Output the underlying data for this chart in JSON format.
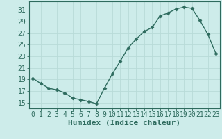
{
  "x": [
    0,
    1,
    2,
    3,
    4,
    5,
    6,
    7,
    8,
    9,
    10,
    11,
    12,
    13,
    14,
    15,
    16,
    17,
    18,
    19,
    20,
    21,
    22,
    23
  ],
  "y": [
    19.2,
    18.3,
    17.5,
    17.2,
    16.7,
    15.8,
    15.5,
    15.2,
    14.8,
    17.5,
    20.0,
    22.2,
    24.5,
    26.0,
    27.3,
    28.0,
    30.0,
    30.5,
    31.2,
    31.5,
    31.3,
    29.2,
    26.8,
    23.5
  ],
  "xlabel": "Humidex (Indice chaleur)",
  "xlim": [
    -0.5,
    23.5
  ],
  "ylim": [
    14.0,
    32.5
  ],
  "yticks": [
    15,
    17,
    19,
    21,
    23,
    25,
    27,
    29,
    31
  ],
  "xticks": [
    0,
    1,
    2,
    3,
    4,
    5,
    6,
    7,
    8,
    9,
    10,
    11,
    12,
    13,
    14,
    15,
    16,
    17,
    18,
    19,
    20,
    21,
    22,
    23
  ],
  "line_color": "#2e6b5e",
  "marker_color": "#2e6b5e",
  "bg_color": "#cdecea",
  "grid_color": "#b8dbd8",
  "axis_color": "#2e6b5e",
  "xlabel_fontsize": 8,
  "tick_fontsize": 7
}
